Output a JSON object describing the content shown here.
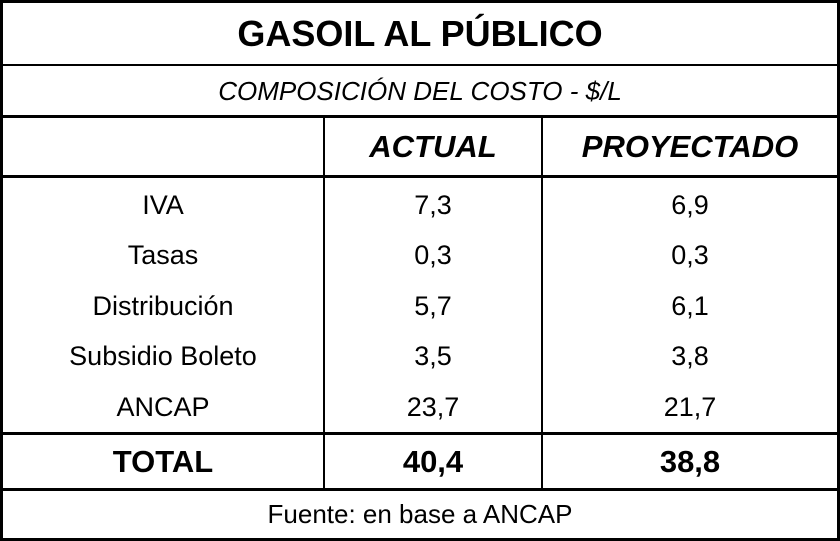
{
  "header": {
    "title": "GASOIL AL PÚBLICO",
    "subtitle": "COMPOSICIÓN DEL COSTO - $/L"
  },
  "table": {
    "columns": [
      "ACTUAL",
      "PROYECTADO"
    ],
    "rows": [
      [
        "IVA",
        "7,3",
        "6,9"
      ],
      [
        "Tasas",
        "0,3",
        "0,3"
      ],
      [
        "Distribución",
        "5,7",
        "6,1"
      ],
      [
        "Subsidio Boleto",
        "3,5",
        "3,8"
      ],
      [
        "ANCAP",
        "23,7",
        "21,7"
      ]
    ],
    "total": [
      "TOTAL",
      "40,4",
      "38,8"
    ]
  },
  "footer": "Fuente: en base a ANCAP"
}
